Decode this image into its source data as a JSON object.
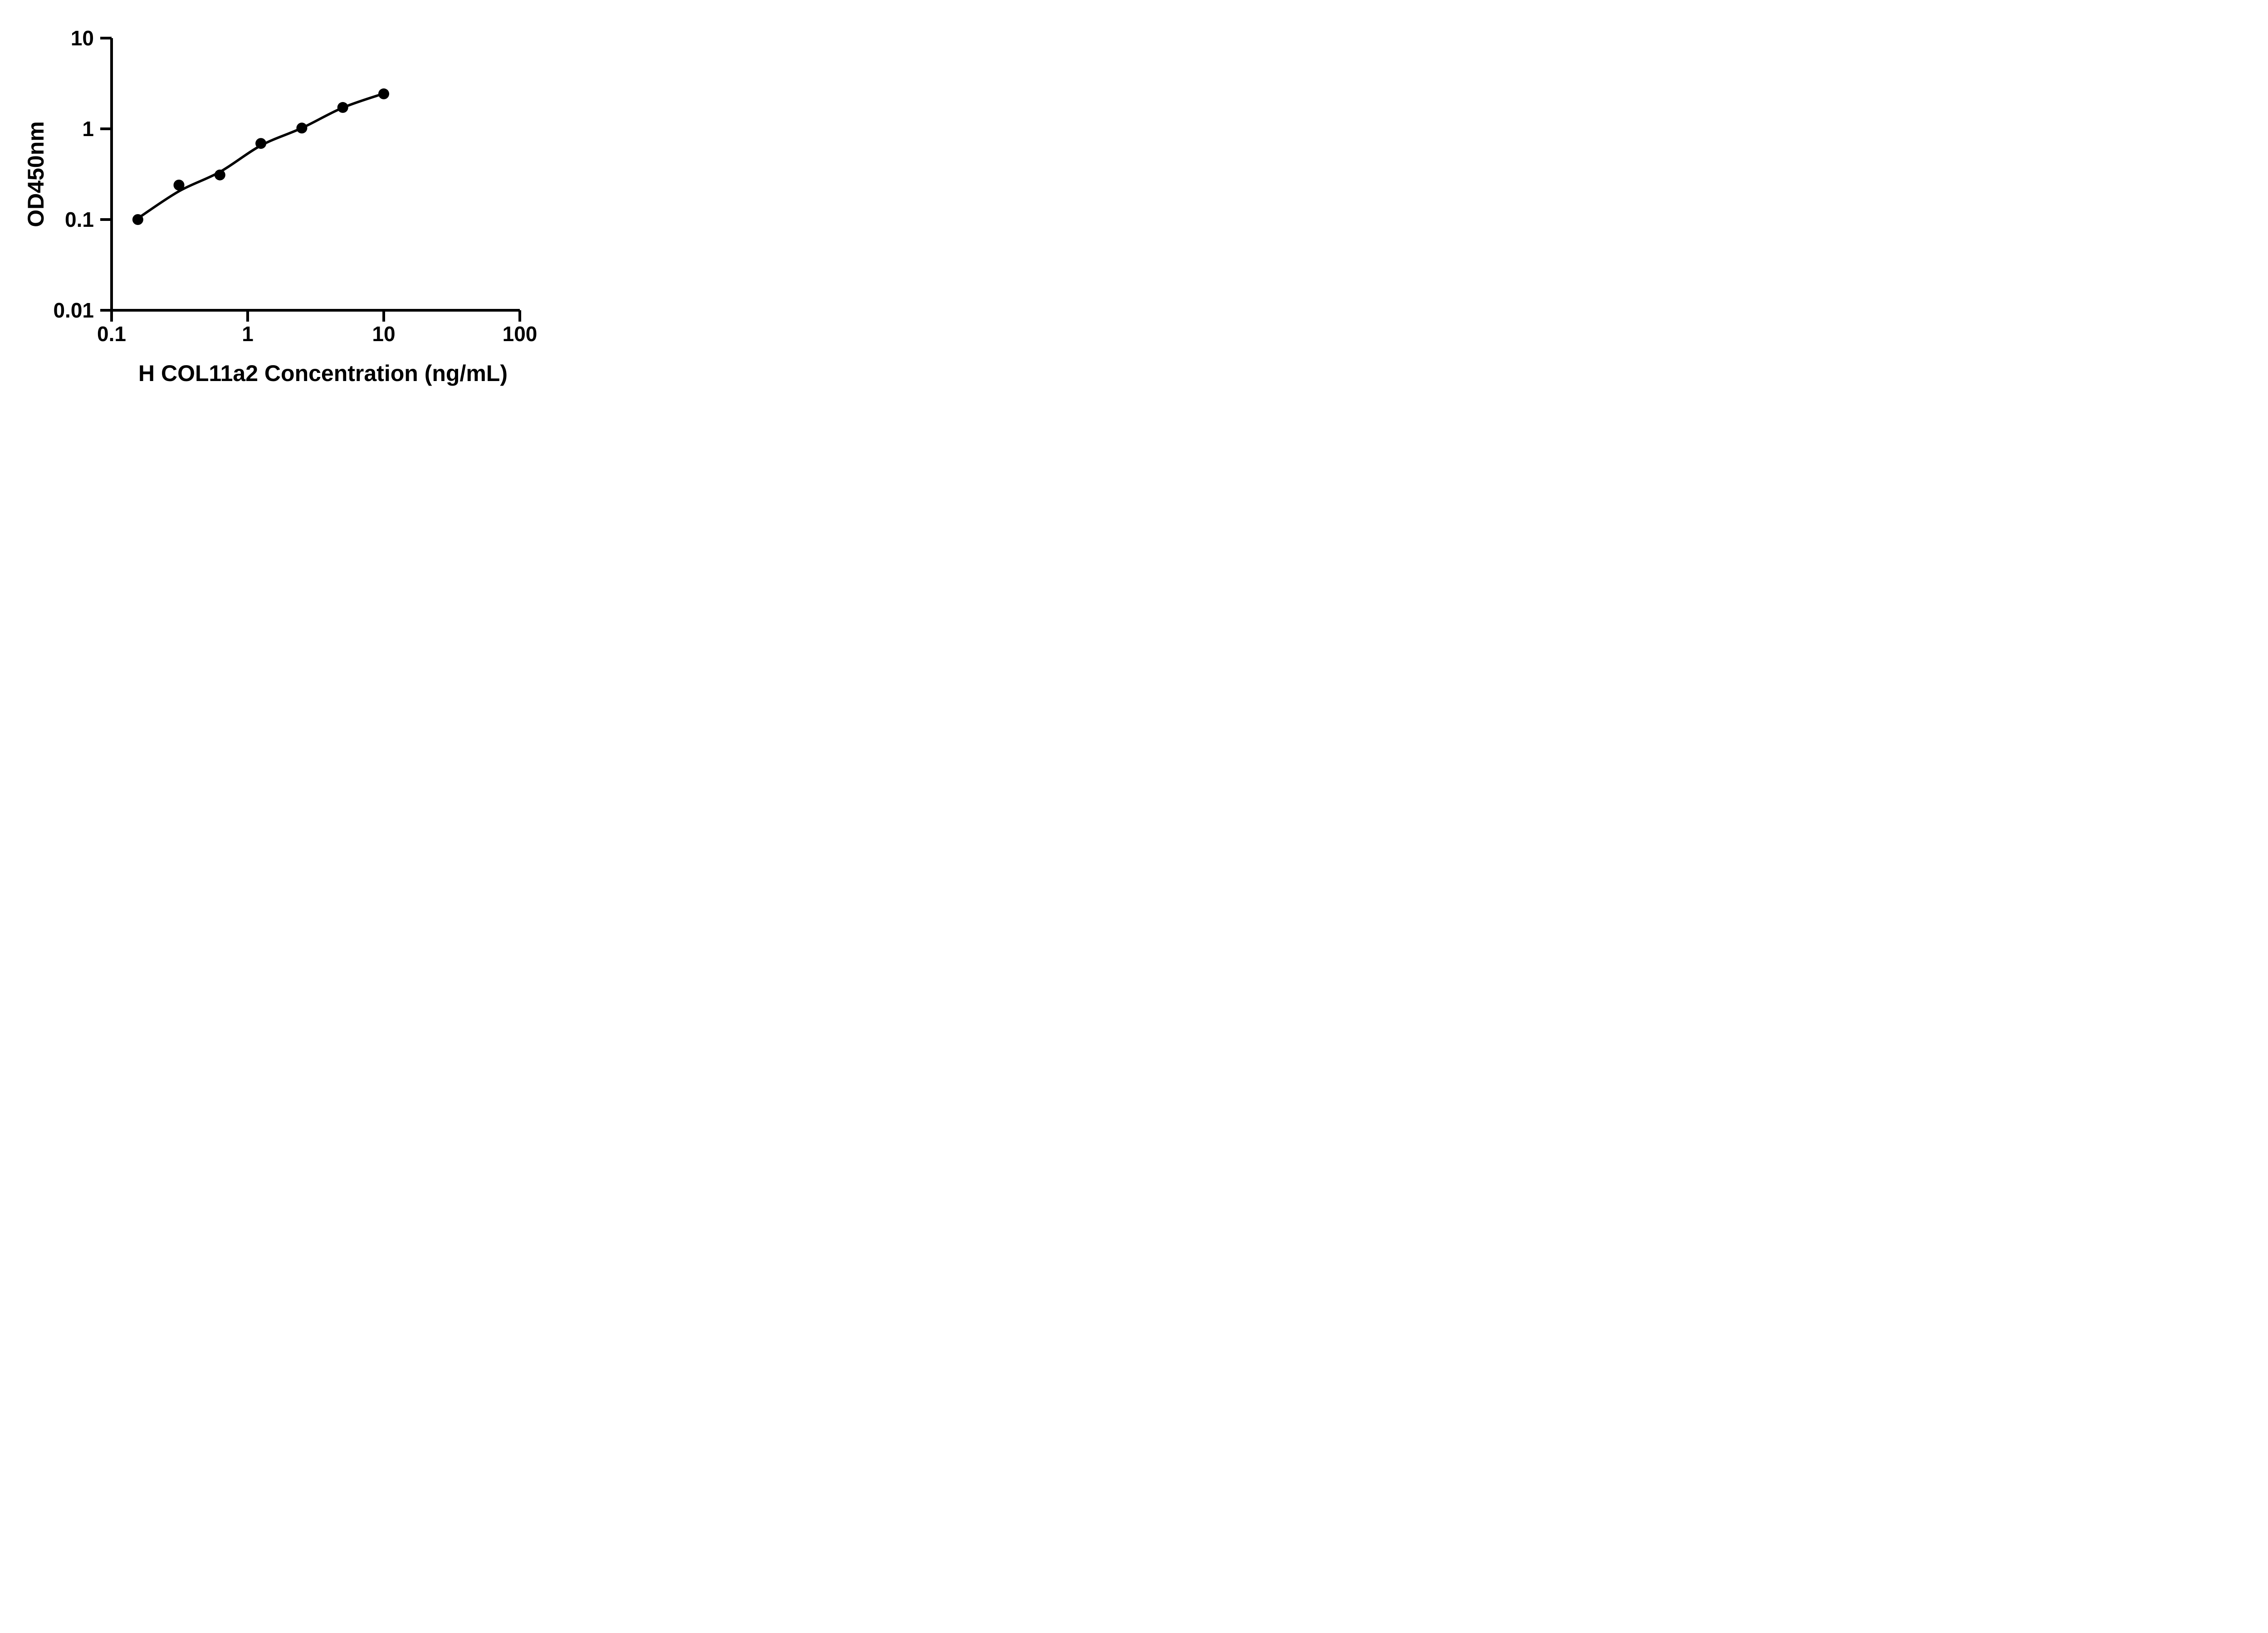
{
  "chart_data": {
    "type": "scatter",
    "title": "",
    "xlabel": "H COL11a2 Concentration (ng/mL)",
    "ylabel": "OD450nm",
    "x_scale": "log10",
    "y_scale": "log10",
    "xlim": [
      0.1,
      100
    ],
    "ylim": [
      0.01,
      10
    ],
    "x_ticks": [
      0.1,
      1,
      10,
      100
    ],
    "x_tick_labels": [
      "0.1",
      "1",
      "10",
      "100"
    ],
    "y_ticks": [
      0.01,
      0.1,
      1,
      10
    ],
    "y_tick_labels": [
      "0.01",
      "0.1",
      "1",
      "10"
    ],
    "grid": false,
    "legend": null,
    "axis_color": "#000000",
    "background_color": "#ffffff",
    "series": [
      {
        "name": "standard-points",
        "type": "scatter",
        "marker": "filled-circle",
        "color": "#000000",
        "x": [
          0.156,
          0.3125,
          0.625,
          1.25,
          2.5,
          5,
          10
        ],
        "y": [
          0.1,
          0.24,
          0.31,
          0.69,
          1.02,
          1.72,
          2.43
        ]
      },
      {
        "name": "fit-curve",
        "type": "line",
        "color": "#000000",
        "x": [
          0.156,
          0.3125,
          0.625,
          1.25,
          2.5,
          5,
          10
        ],
        "y": [
          0.103,
          0.205,
          0.335,
          0.655,
          1.02,
          1.71,
          2.45
        ]
      }
    ]
  }
}
